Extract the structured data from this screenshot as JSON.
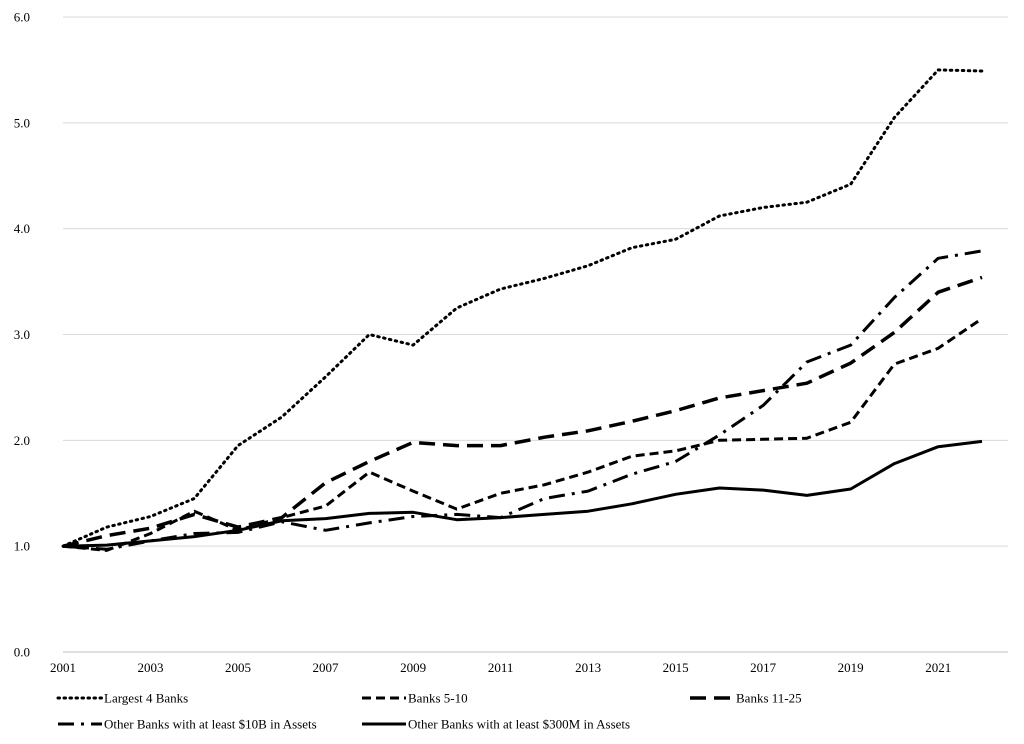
{
  "chart_data": {
    "type": "line",
    "title": "",
    "xlabel": "",
    "ylabel": "",
    "x": [
      2001,
      2002,
      2003,
      2004,
      2005,
      2006,
      2007,
      2008,
      2009,
      2010,
      2011,
      2012,
      2013,
      2014,
      2015,
      2016,
      2017,
      2018,
      2019,
      2020,
      2021,
      2022
    ],
    "x_tick_labels": [
      "2001",
      "2003",
      "2005",
      "2007",
      "2009",
      "2011",
      "2013",
      "2015",
      "2017",
      "2019",
      "2021"
    ],
    "y_tick_labels": [
      "0.0",
      "1.0",
      "2.0",
      "3.0",
      "4.0",
      "5.0",
      "6.0"
    ],
    "xlim": [
      2001,
      2022.5
    ],
    "ylim": [
      0,
      6
    ],
    "grid": "horizontal",
    "legend_position": "bottom",
    "series": [
      {
        "name": "Largest 4 Banks",
        "style": "dotted",
        "color": "#000000",
        "values": [
          1.0,
          1.18,
          1.28,
          1.45,
          1.95,
          2.22,
          2.6,
          3.0,
          2.9,
          3.25,
          3.43,
          3.53,
          3.65,
          3.82,
          3.9,
          4.12,
          4.2,
          4.25,
          4.42,
          5.05,
          5.5,
          5.49
        ]
      },
      {
        "name": "Banks 5-10",
        "style": "short-dash",
        "color": "#000000",
        "values": [
          1.0,
          0.96,
          1.12,
          1.33,
          1.15,
          1.27,
          1.38,
          1.7,
          1.52,
          1.35,
          1.5,
          1.58,
          1.7,
          1.85,
          1.9,
          2.0,
          2.01,
          2.02,
          2.17,
          2.72,
          2.87,
          3.15
        ]
      },
      {
        "name": "Banks 11-25",
        "style": "long-dash",
        "color": "#000000",
        "values": [
          1.0,
          1.1,
          1.17,
          1.3,
          1.18,
          1.27,
          1.6,
          1.8,
          1.98,
          1.95,
          1.95,
          2.03,
          2.09,
          2.18,
          2.28,
          2.4,
          2.47,
          2.54,
          2.73,
          3.02,
          3.4,
          3.54
        ]
      },
      {
        "name": "Other Banks with at least $10B in Assets",
        "style": "dash-dot",
        "color": "#000000",
        "values": [
          1.0,
          0.97,
          1.05,
          1.12,
          1.13,
          1.23,
          1.15,
          1.22,
          1.28,
          1.3,
          1.27,
          1.45,
          1.52,
          1.68,
          1.8,
          2.05,
          2.33,
          2.74,
          2.9,
          3.35,
          3.72,
          3.79
        ]
      },
      {
        "name": "Other Banks with at least $300M in Assets",
        "style": "solid",
        "color": "#000000",
        "values": [
          1.0,
          1.01,
          1.05,
          1.09,
          1.15,
          1.24,
          1.26,
          1.31,
          1.32,
          1.25,
          1.27,
          1.3,
          1.33,
          1.4,
          1.49,
          1.55,
          1.53,
          1.48,
          1.54,
          1.78,
          1.94,
          1.99
        ]
      }
    ]
  }
}
